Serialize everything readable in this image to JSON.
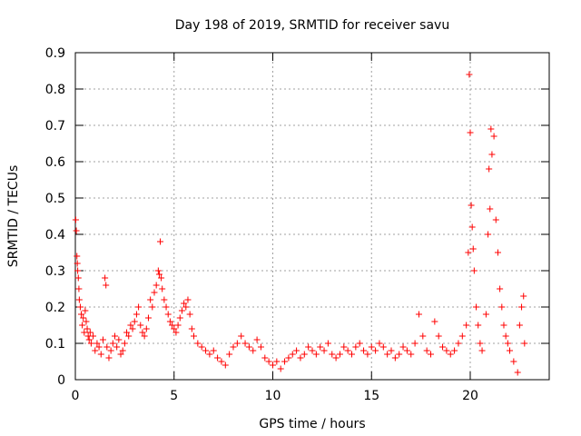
{
  "chart_data": {
    "type": "scatter",
    "title": "Day 198 of 2019, SRMTID for receiver savu",
    "xlabel": "GPS time / hours",
    "ylabel": "SRMTID / TECUs",
    "xlim": [
      0,
      24
    ],
    "ylim": [
      0,
      0.9
    ],
    "xticks": [
      0,
      5,
      10,
      15,
      20
    ],
    "xtick_labels": [
      "0",
      "5",
      "10",
      "15",
      "20"
    ],
    "yticks": [
      0,
      0.1,
      0.2,
      0.3,
      0.4,
      0.5,
      0.6,
      0.7,
      0.8,
      0.9
    ],
    "ytick_labels": [
      "0",
      "0.1",
      "0.2",
      "0.3",
      "0.4",
      "0.5",
      "0.6",
      "0.7",
      "0.8",
      "0.9"
    ],
    "grid": true,
    "marker": "+",
    "color": "#ff0000",
    "series": [
      {
        "name": "savu",
        "points": [
          [
            0.02,
            0.44
          ],
          [
            0.05,
            0.41
          ],
          [
            0.08,
            0.34
          ],
          [
            0.1,
            0.32
          ],
          [
            0.12,
            0.3
          ],
          [
            0.15,
            0.28
          ],
          [
            0.18,
            0.25
          ],
          [
            0.2,
            0.22
          ],
          [
            0.25,
            0.2
          ],
          [
            0.3,
            0.18
          ],
          [
            0.35,
            0.15
          ],
          [
            0.4,
            0.17
          ],
          [
            0.45,
            0.13
          ],
          [
            0.5,
            0.19
          ],
          [
            0.55,
            0.16
          ],
          [
            0.6,
            0.14
          ],
          [
            0.65,
            0.12
          ],
          [
            0.7,
            0.11
          ],
          [
            0.75,
            0.13
          ],
          [
            0.8,
            0.1
          ],
          [
            0.9,
            0.12
          ],
          [
            1.0,
            0.08
          ],
          [
            1.1,
            0.1
          ],
          [
            1.2,
            0.09
          ],
          [
            1.3,
            0.07
          ],
          [
            1.4,
            0.11
          ],
          [
            1.5,
            0.28
          ],
          [
            1.55,
            0.26
          ],
          [
            1.6,
            0.09
          ],
          [
            1.7,
            0.06
          ],
          [
            1.8,
            0.08
          ],
          [
            1.9,
            0.1
          ],
          [
            2.0,
            0.12
          ],
          [
            2.1,
            0.09
          ],
          [
            2.2,
            0.11
          ],
          [
            2.3,
            0.07
          ],
          [
            2.4,
            0.08
          ],
          [
            2.5,
            0.1
          ],
          [
            2.6,
            0.13
          ],
          [
            2.7,
            0.12
          ],
          [
            2.8,
            0.15
          ],
          [
            2.9,
            0.14
          ],
          [
            3.0,
            0.16
          ],
          [
            3.1,
            0.18
          ],
          [
            3.2,
            0.2
          ],
          [
            3.3,
            0.15
          ],
          [
            3.4,
            0.13
          ],
          [
            3.5,
            0.12
          ],
          [
            3.6,
            0.14
          ],
          [
            3.7,
            0.17
          ],
          [
            3.8,
            0.22
          ],
          [
            3.9,
            0.2
          ],
          [
            4.0,
            0.24
          ],
          [
            4.1,
            0.26
          ],
          [
            4.2,
            0.3
          ],
          [
            4.25,
            0.29
          ],
          [
            4.3,
            0.38
          ],
          [
            4.35,
            0.28
          ],
          [
            4.4,
            0.25
          ],
          [
            4.5,
            0.22
          ],
          [
            4.6,
            0.2
          ],
          [
            4.7,
            0.18
          ],
          [
            4.8,
            0.16
          ],
          [
            4.9,
            0.15
          ],
          [
            5.0,
            0.14
          ],
          [
            5.1,
            0.13
          ],
          [
            5.2,
            0.15
          ],
          [
            5.3,
            0.17
          ],
          [
            5.4,
            0.19
          ],
          [
            5.5,
            0.21
          ],
          [
            5.6,
            0.2
          ],
          [
            5.7,
            0.22
          ],
          [
            5.8,
            0.18
          ],
          [
            5.9,
            0.14
          ],
          [
            6.0,
            0.12
          ],
          [
            6.2,
            0.1
          ],
          [
            6.4,
            0.09
          ],
          [
            6.6,
            0.08
          ],
          [
            6.8,
            0.07
          ],
          [
            7.0,
            0.08
          ],
          [
            7.2,
            0.06
          ],
          [
            7.4,
            0.05
          ],
          [
            7.6,
            0.04
          ],
          [
            7.8,
            0.07
          ],
          [
            8.0,
            0.09
          ],
          [
            8.2,
            0.1
          ],
          [
            8.4,
            0.12
          ],
          [
            8.6,
            0.1
          ],
          [
            8.8,
            0.09
          ],
          [
            9.0,
            0.08
          ],
          [
            9.2,
            0.11
          ],
          [
            9.4,
            0.09
          ],
          [
            9.6,
            0.06
          ],
          [
            9.8,
            0.05
          ],
          [
            10.0,
            0.04
          ],
          [
            10.2,
            0.05
          ],
          [
            10.4,
            0.03
          ],
          [
            10.6,
            0.05
          ],
          [
            10.8,
            0.06
          ],
          [
            11.0,
            0.07
          ],
          [
            11.2,
            0.08
          ],
          [
            11.4,
            0.06
          ],
          [
            11.6,
            0.07
          ],
          [
            11.8,
            0.09
          ],
          [
            12.0,
            0.08
          ],
          [
            12.2,
            0.07
          ],
          [
            12.4,
            0.09
          ],
          [
            12.6,
            0.08
          ],
          [
            12.8,
            0.1
          ],
          [
            13.0,
            0.07
          ],
          [
            13.2,
            0.06
          ],
          [
            13.4,
            0.07
          ],
          [
            13.6,
            0.09
          ],
          [
            13.8,
            0.08
          ],
          [
            14.0,
            0.07
          ],
          [
            14.2,
            0.09
          ],
          [
            14.4,
            0.1
          ],
          [
            14.6,
            0.08
          ],
          [
            14.8,
            0.07
          ],
          [
            15.0,
            0.09
          ],
          [
            15.2,
            0.08
          ],
          [
            15.4,
            0.1
          ],
          [
            15.6,
            0.09
          ],
          [
            15.8,
            0.07
          ],
          [
            16.0,
            0.08
          ],
          [
            16.2,
            0.06
          ],
          [
            16.4,
            0.07
          ],
          [
            16.6,
            0.09
          ],
          [
            16.8,
            0.08
          ],
          [
            17.0,
            0.07
          ],
          [
            17.2,
            0.1
          ],
          [
            17.4,
            0.18
          ],
          [
            17.6,
            0.12
          ],
          [
            17.8,
            0.08
          ],
          [
            18.0,
            0.07
          ],
          [
            18.2,
            0.16
          ],
          [
            18.4,
            0.12
          ],
          [
            18.6,
            0.09
          ],
          [
            18.8,
            0.08
          ],
          [
            19.0,
            0.07
          ],
          [
            19.2,
            0.08
          ],
          [
            19.4,
            0.1
          ],
          [
            19.6,
            0.12
          ],
          [
            19.8,
            0.15
          ],
          [
            19.9,
            0.35
          ],
          [
            19.95,
            0.84
          ],
          [
            20.0,
            0.68
          ],
          [
            20.05,
            0.48
          ],
          [
            20.1,
            0.42
          ],
          [
            20.15,
            0.36
          ],
          [
            20.2,
            0.3
          ],
          [
            20.3,
            0.2
          ],
          [
            20.4,
            0.15
          ],
          [
            20.5,
            0.1
          ],
          [
            20.6,
            0.08
          ],
          [
            20.8,
            0.18
          ],
          [
            20.9,
            0.4
          ],
          [
            20.95,
            0.58
          ],
          [
            21.0,
            0.47
          ],
          [
            21.05,
            0.69
          ],
          [
            21.1,
            0.62
          ],
          [
            21.2,
            0.67
          ],
          [
            21.3,
            0.44
          ],
          [
            21.4,
            0.35
          ],
          [
            21.5,
            0.25
          ],
          [
            21.6,
            0.2
          ],
          [
            21.7,
            0.15
          ],
          [
            21.8,
            0.12
          ],
          [
            21.9,
            0.1
          ],
          [
            22.0,
            0.08
          ],
          [
            22.2,
            0.05
          ],
          [
            22.4,
            0.02
          ],
          [
            22.5,
            0.15
          ],
          [
            22.6,
            0.2
          ],
          [
            22.7,
            0.23
          ],
          [
            22.75,
            0.1
          ]
        ]
      }
    ]
  }
}
